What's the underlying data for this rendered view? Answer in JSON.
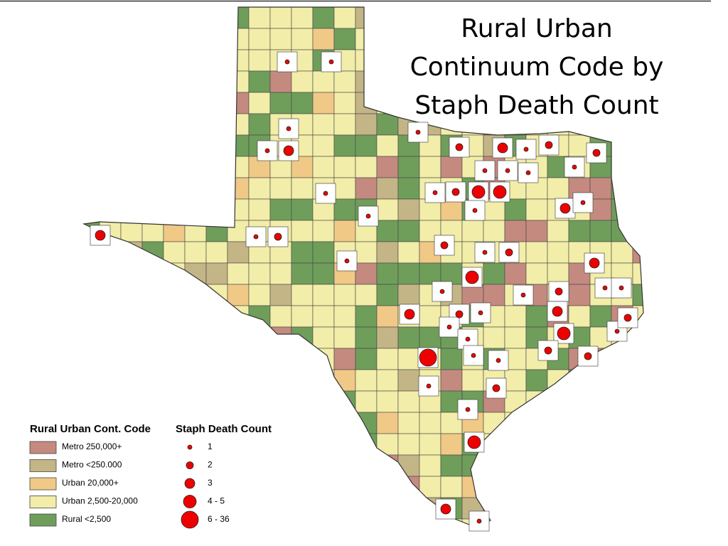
{
  "title": "Rural Urban Continuum Code by Staph Death Count",
  "legend_code": {
    "heading": "Rural Urban Cont. Code",
    "items": [
      {
        "label": "Metro 250,000+",
        "color": "#c48a80"
      },
      {
        "label": "Metro <250.000",
        "color": "#c4b587"
      },
      {
        "label": "Urban 20,000+",
        "color": "#f0c987"
      },
      {
        "label": "Urban 2,500-20,000",
        "color": "#f2eda8"
      },
      {
        "label": "Rural <2,500",
        "color": "#6f9e5b"
      }
    ]
  },
  "legend_count": {
    "heading": "Staph Death Count",
    "items": [
      {
        "label": "1"
      },
      {
        "label": "2"
      },
      {
        "label": "3"
      },
      {
        "label": "4 - 5"
      },
      {
        "label": "6 - 36"
      }
    ],
    "color": "#ee0000"
  }
}
